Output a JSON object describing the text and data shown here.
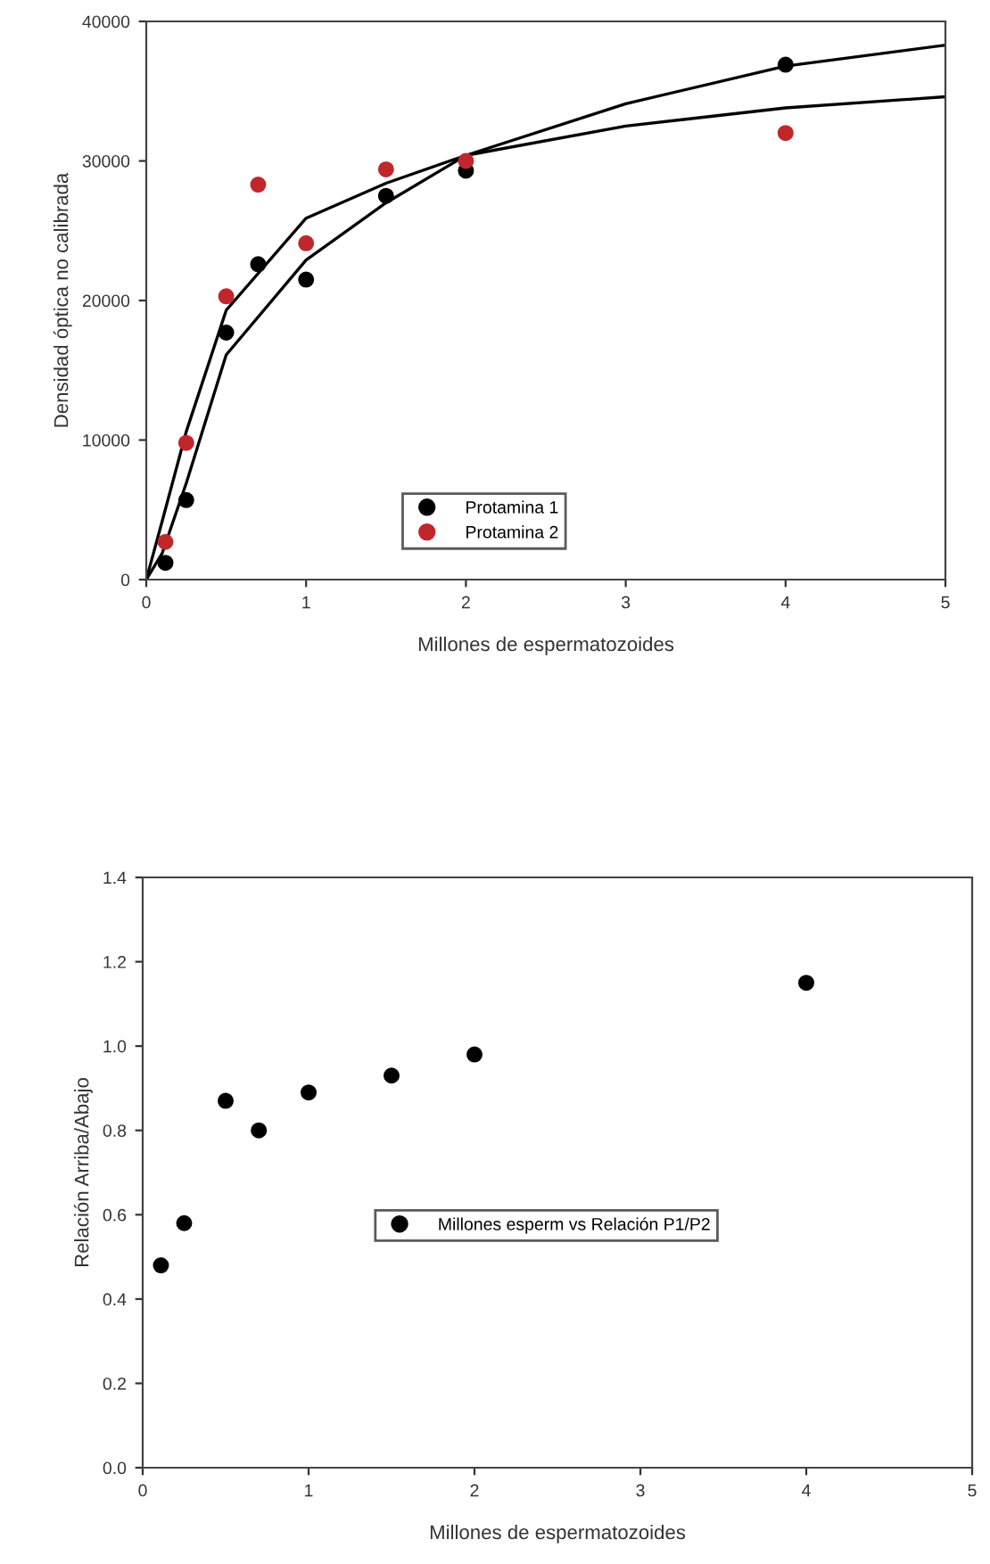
{
  "chart_data": [
    {
      "type": "scatter",
      "xlabel": "Millones de espermatozoides",
      "ylabel": "Densidad óptica no calibrada",
      "xlim": [
        0,
        5
      ],
      "xticks": [
        0,
        1,
        2,
        3,
        4,
        5
      ],
      "ylim": [
        0,
        40000
      ],
      "yticks": [
        0,
        10000,
        20000,
        30000,
        40000
      ],
      "grid": false,
      "legend": "bottom",
      "marker": "circle",
      "series": [
        {
          "name": "Protamina 1",
          "color": "#000000",
          "x": [
            0.12,
            0.25,
            0.5,
            0.7,
            1,
            1.5,
            2,
            4
          ],
          "values": [
            1200,
            5700,
            17700,
            22600,
            21500,
            27500,
            29300,
            36900
          ]
        },
        {
          "name": "Protamina 2",
          "color": "#c0272d",
          "x": [
            0.12,
            0.25,
            0.5,
            0.7,
            1,
            1.5,
            2,
            4
          ],
          "values": [
            2700,
            9800,
            20300,
            28300,
            24100,
            29400,
            30000,
            32000
          ]
        },
        {
          "type": "line",
          "color": "#000000",
          "marker": "none",
          "line_style": "solid",
          "x": [
            0,
            0.1,
            0.25,
            0.5,
            1,
            1.5,
            2,
            3,
            4,
            5
          ],
          "values": [
            0,
            4200,
            10600,
            19300,
            25900,
            28400,
            30400,
            32500,
            33800,
            34600
          ]
        },
        {
          "type": "line",
          "color": "#000000",
          "marker": "none",
          "line_style": "solid",
          "x": [
            0,
            0.1,
            0.25,
            0.5,
            1,
            1.5,
            2,
            3,
            4,
            5
          ],
          "values": [
            0,
            1900,
            6900,
            16100,
            22900,
            27000,
            30400,
            34100,
            36800,
            38300
          ]
        }
      ]
    },
    {
      "type": "scatter",
      "xlabel": "Millones de espermatozoides",
      "ylabel": "Relación Arriba/Abajo",
      "xlim": [
        0,
        5
      ],
      "xticks": [
        0,
        1,
        2,
        3,
        4,
        5
      ],
      "ylim": [
        0,
        1.4
      ],
      "yticks": [
        {
          "value": 0,
          "label": "0.0"
        },
        {
          "value": 0.2,
          "label": "0.2"
        },
        {
          "value": 0.4,
          "label": "0.4"
        },
        {
          "value": 0.6,
          "label": "0.6"
        },
        {
          "value": 0.8,
          "label": "0.8"
        },
        {
          "value": 1,
          "label": "1.0"
        },
        {
          "value": 1.2,
          "label": "1.2"
        },
        {
          "value": 1.4,
          "label": "1.4"
        }
      ],
      "grid": false,
      "legend": "right",
      "marker": "circle",
      "series": [
        {
          "name": "Millones esperm vs Relación P1/P2",
          "color": "#000000",
          "x": [
            0.11,
            0.25,
            0.5,
            0.7,
            1,
            1.5,
            2,
            4
          ],
          "values": [
            0.48,
            0.58,
            0.87,
            0.8,
            0.89,
            0.93,
            0.98,
            1.15
          ]
        }
      ]
    }
  ]
}
